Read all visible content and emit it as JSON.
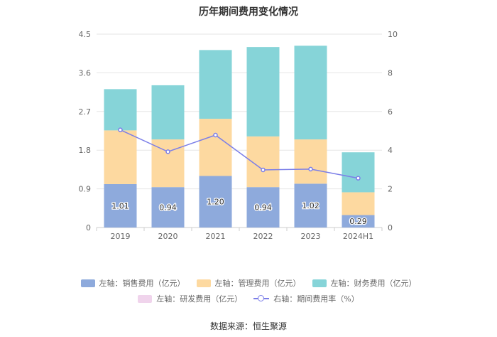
{
  "chart_data": {
    "type": "bar",
    "title": "历年期间费用变化情况",
    "categories": [
      "2019",
      "2020",
      "2021",
      "2022",
      "2023",
      "2024H1"
    ],
    "stacked": true,
    "left_axis": {
      "min": 0,
      "max": 4.5,
      "ticks": [
        "0",
        "0.9",
        "1.8",
        "2.7",
        "3.6",
        "4.5"
      ]
    },
    "right_axis": {
      "min": 0,
      "max": 10,
      "ticks": [
        "0",
        "2",
        "4",
        "6",
        "8",
        "10"
      ]
    },
    "series": [
      {
        "name": "左轴：销售费用（亿元）",
        "axis": "left",
        "type": "bar",
        "color": "#8eaadc",
        "values": [
          1.01,
          0.94,
          1.2,
          0.94,
          1.02,
          0.29
        ],
        "labels": [
          "1.01",
          "0.94",
          "1.20",
          "0.94",
          "1.02",
          "0.29"
        ]
      },
      {
        "name": "左轴：管理费用（亿元）",
        "axis": "left",
        "type": "bar",
        "color": "#fdd9a0",
        "values": [
          1.25,
          1.11,
          1.33,
          1.18,
          1.03,
          0.53
        ]
      },
      {
        "name": "左轴：财务费用（亿元）",
        "axis": "left",
        "type": "bar",
        "color": "#86d4d8",
        "values": [
          0.96,
          1.26,
          1.6,
          2.08,
          2.18,
          0.93
        ]
      },
      {
        "name": "左轴：研发费用（亿元）",
        "axis": "left",
        "type": "bar",
        "color": "#f0d4ec",
        "values": [
          0,
          0,
          0,
          0,
          0,
          0
        ]
      },
      {
        "name": "右轴：期间费用率（%）",
        "axis": "right",
        "type": "line",
        "color": "#7b7ee8",
        "values": [
          5.05,
          3.92,
          4.78,
          2.98,
          3.02,
          2.55
        ]
      }
    ],
    "legend_position": "bottom"
  },
  "source": "数据来源：恒生聚源"
}
